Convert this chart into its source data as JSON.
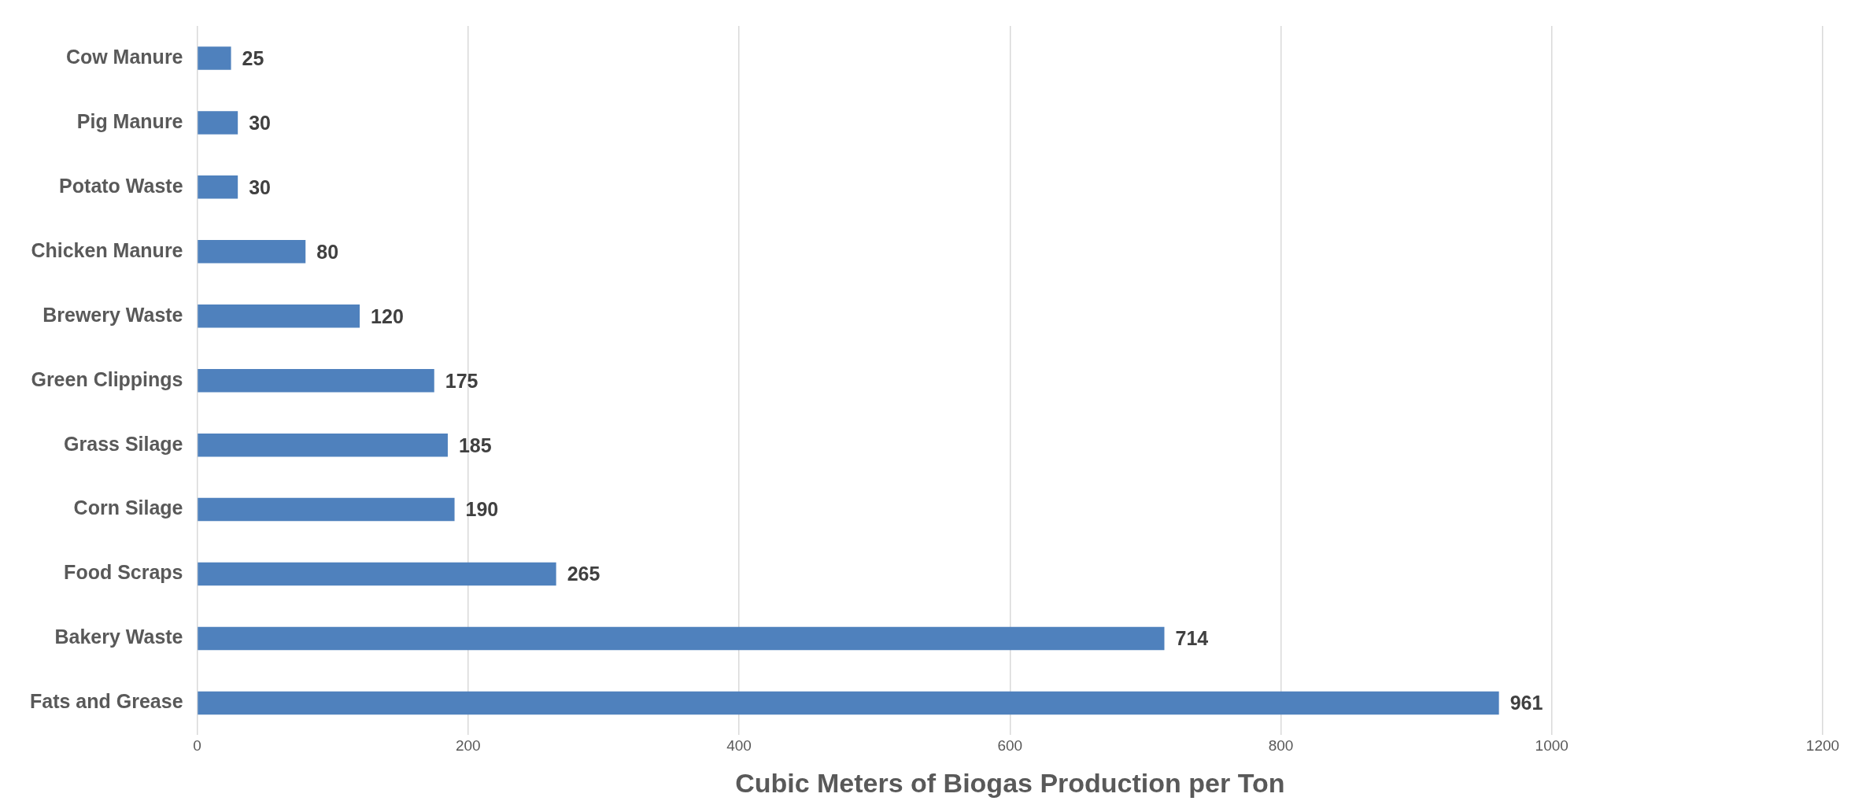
{
  "chart_data": {
    "type": "bar",
    "orientation": "horizontal",
    "xlabel": "Cubic Meters of Biogas Production per Ton",
    "categories": [
      "Cow Manure",
      "Pig Manure",
      "Potato Waste",
      "Chicken Manure",
      "Brewery Waste",
      "Green Clippings",
      "Grass Silage",
      "Corn Silage",
      "Food Scraps",
      "Bakery Waste",
      "Fats and Grease"
    ],
    "values": [
      25,
      30,
      30,
      80,
      120,
      175,
      185,
      190,
      265,
      714,
      961
    ],
    "color": "#4f81bd",
    "xlim": [
      0,
      1200
    ],
    "xticks": [
      0,
      200,
      400,
      600,
      800,
      1000,
      1200
    ],
    "grid": "x",
    "data_labels": true
  }
}
